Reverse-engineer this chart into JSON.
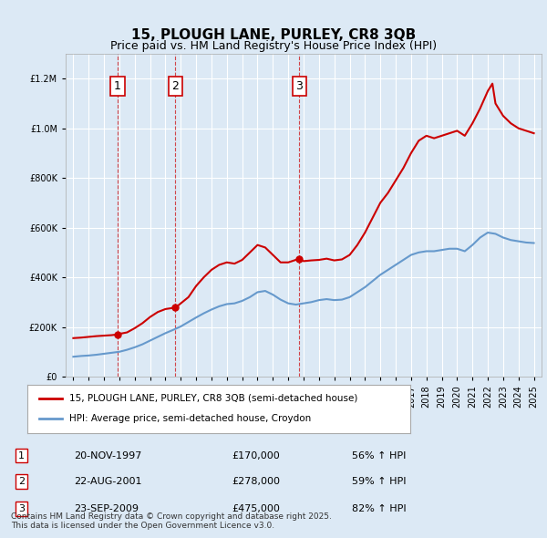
{
  "title": "15, PLOUGH LANE, PURLEY, CR8 3QB",
  "subtitle": "Price paid vs. HM Land Registry's House Price Index (HPI)",
  "red_line_label": "15, PLOUGH LANE, PURLEY, CR8 3QB (semi-detached house)",
  "blue_line_label": "HPI: Average price, semi-detached house, Croydon",
  "footer": "Contains HM Land Registry data © Crown copyright and database right 2025.\nThis data is licensed under the Open Government Licence v3.0.",
  "transactions": [
    {
      "num": 1,
      "date": "20-NOV-1997",
      "price": 170000,
      "hpi_pct": "56% ↑ HPI",
      "year": 1997.89
    },
    {
      "num": 2,
      "date": "22-AUG-2001",
      "price": 278000,
      "hpi_pct": "59% ↑ HPI",
      "year": 2001.64
    },
    {
      "num": 3,
      "date": "23-SEP-2009",
      "price": 475000,
      "hpi_pct": "82% ↑ HPI",
      "year": 2009.73
    }
  ],
  "ylim": [
    0,
    1300000
  ],
  "xlim_start": 1994.5,
  "xlim_end": 2025.5,
  "background_color": "#dce9f5",
  "plot_bg_color": "#dce9f5",
  "grid_color": "#ffffff",
  "red_color": "#cc0000",
  "blue_color": "#6699cc",
  "red_x": [
    1995.0,
    1995.5,
    1996.0,
    1996.5,
    1997.0,
    1997.5,
    1997.89,
    1998.0,
    1998.5,
    1999.0,
    1999.5,
    2000.0,
    2000.5,
    2001.0,
    2001.64,
    2001.8,
    2002.0,
    2002.5,
    2003.0,
    2003.5,
    2004.0,
    2004.5,
    2005.0,
    2005.5,
    2006.0,
    2006.5,
    2007.0,
    2007.5,
    2008.0,
    2008.5,
    2009.0,
    2009.73,
    2010.0,
    2010.5,
    2011.0,
    2011.5,
    2012.0,
    2012.5,
    2013.0,
    2013.5,
    2014.0,
    2014.5,
    2015.0,
    2015.5,
    2016.0,
    2016.5,
    2017.0,
    2017.5,
    2018.0,
    2018.5,
    2019.0,
    2019.5,
    2020.0,
    2020.5,
    2021.0,
    2021.5,
    2022.0,
    2022.3,
    2022.5,
    2023.0,
    2023.5,
    2024.0,
    2024.5,
    2025.0
  ],
  "red_y": [
    155000,
    157000,
    160000,
    163000,
    165000,
    167000,
    170000,
    172000,
    178000,
    195000,
    215000,
    240000,
    260000,
    272000,
    278000,
    285000,
    295000,
    320000,
    365000,
    400000,
    430000,
    450000,
    460000,
    455000,
    470000,
    500000,
    530000,
    520000,
    490000,
    460000,
    460000,
    475000,
    465000,
    468000,
    470000,
    475000,
    468000,
    472000,
    490000,
    530000,
    580000,
    640000,
    700000,
    740000,
    790000,
    840000,
    900000,
    950000,
    970000,
    960000,
    970000,
    980000,
    990000,
    970000,
    1020000,
    1080000,
    1150000,
    1180000,
    1100000,
    1050000,
    1020000,
    1000000,
    990000,
    980000
  ],
  "blue_x": [
    1995.0,
    1995.5,
    1996.0,
    1996.5,
    1997.0,
    1997.5,
    1998.0,
    1998.5,
    1999.0,
    1999.5,
    2000.0,
    2000.5,
    2001.0,
    2001.5,
    2002.0,
    2002.5,
    2003.0,
    2003.5,
    2004.0,
    2004.5,
    2005.0,
    2005.5,
    2006.0,
    2006.5,
    2007.0,
    2007.5,
    2008.0,
    2008.5,
    2009.0,
    2009.5,
    2010.0,
    2010.5,
    2011.0,
    2011.5,
    2012.0,
    2012.5,
    2013.0,
    2013.5,
    2014.0,
    2014.5,
    2015.0,
    2015.5,
    2016.0,
    2016.5,
    2017.0,
    2017.5,
    2018.0,
    2018.5,
    2019.0,
    2019.5,
    2020.0,
    2020.5,
    2021.0,
    2021.5,
    2022.0,
    2022.5,
    2023.0,
    2023.5,
    2024.0,
    2024.5,
    2025.0
  ],
  "blue_y": [
    80000,
    83000,
    85000,
    88000,
    92000,
    96000,
    100000,
    108000,
    118000,
    130000,
    145000,
    160000,
    175000,
    188000,
    202000,
    220000,
    238000,
    255000,
    270000,
    283000,
    292000,
    295000,
    305000,
    320000,
    340000,
    345000,
    330000,
    310000,
    295000,
    290000,
    295000,
    300000,
    308000,
    312000,
    308000,
    310000,
    320000,
    340000,
    360000,
    385000,
    410000,
    430000,
    450000,
    470000,
    490000,
    500000,
    505000,
    505000,
    510000,
    515000,
    515000,
    505000,
    530000,
    560000,
    580000,
    575000,
    560000,
    550000,
    545000,
    540000,
    538000
  ]
}
